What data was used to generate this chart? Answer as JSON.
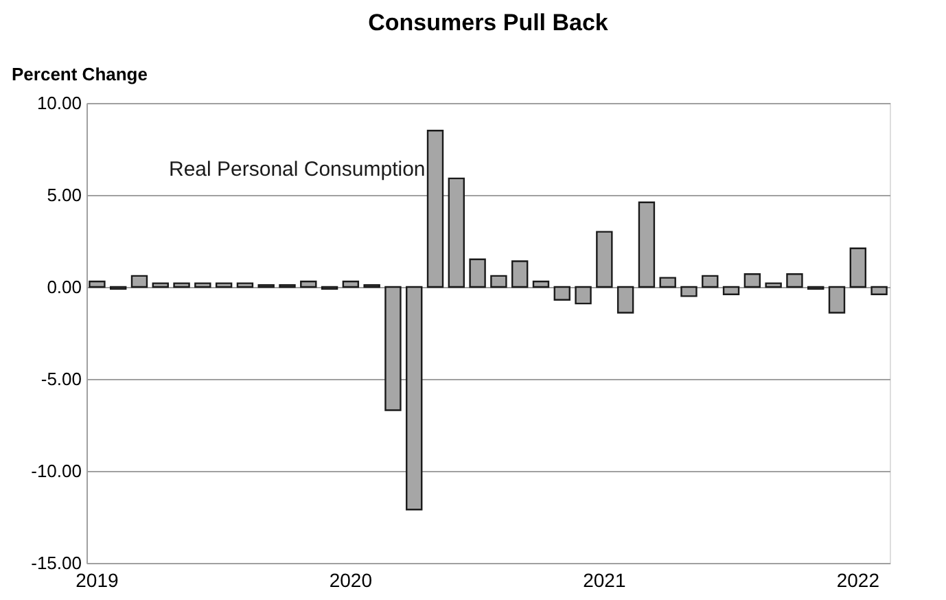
{
  "chart_data": {
    "type": "bar",
    "title": "Consumers Pull Back",
    "ylabel": "Percent Change",
    "annotations": [
      "Real Personal Consumption"
    ],
    "categories": [
      "2019",
      null,
      null,
      null,
      null,
      null,
      null,
      null,
      null,
      null,
      null,
      null,
      "2020",
      null,
      null,
      null,
      null,
      null,
      null,
      null,
      null,
      null,
      null,
      null,
      "2021",
      null,
      null,
      null,
      null,
      null,
      null,
      null,
      null,
      null,
      null,
      null,
      "2022",
      null
    ],
    "values": [
      0.3,
      -0.1,
      0.6,
      0.2,
      0.2,
      0.2,
      0.2,
      0.2,
      0.1,
      0.1,
      0.3,
      -0.1,
      0.3,
      0.1,
      -6.7,
      -12.1,
      8.5,
      5.9,
      1.5,
      0.6,
      1.4,
      0.3,
      -0.7,
      -0.9,
      3.0,
      -1.4,
      4.6,
      0.5,
      -0.5,
      0.6,
      -0.4,
      0.7,
      0.2,
      0.7,
      -0.1,
      -1.4,
      2.1,
      -0.4
    ],
    "color": "#a6a6a6",
    "ylim": [
      -15,
      10
    ],
    "yticks": [
      {
        "value": -15,
        "label": "-15.00"
      },
      {
        "value": -10,
        "label": "-10.00"
      },
      {
        "value": -5,
        "label": "-5.00"
      },
      {
        "value": 0,
        "label": "0.00"
      },
      {
        "value": 5,
        "label": "5.00"
      },
      {
        "value": 10,
        "label": "10.00"
      }
    ],
    "grid": "y"
  }
}
